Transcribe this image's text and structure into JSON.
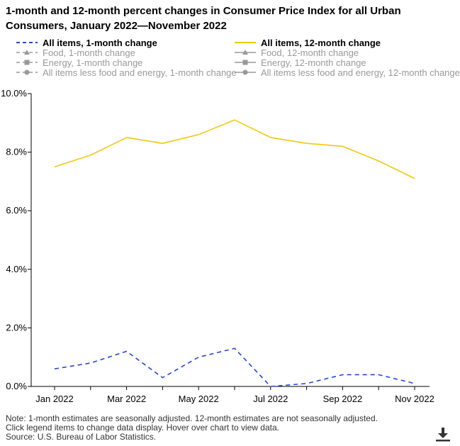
{
  "title": "1-month and 12-month percent changes in Consumer Price Index for all Urban Consumers, January 2022—November 2022",
  "legend": [
    {
      "label": "All items, 1-month change",
      "active": true,
      "color": "#2446d8",
      "dash": true,
      "marker": "none"
    },
    {
      "label": "All items, 12-month change",
      "active": true,
      "color": "#f2c80f",
      "dash": false,
      "marker": "none"
    },
    {
      "label": "Food, 1-month change",
      "active": false,
      "color": "#999999",
      "dash": true,
      "marker": "triangle"
    },
    {
      "label": "Food, 12-month change",
      "active": false,
      "color": "#999999",
      "dash": false,
      "marker": "triangle"
    },
    {
      "label": "Energy, 1-month change",
      "active": false,
      "color": "#999999",
      "dash": true,
      "marker": "square"
    },
    {
      "label": "Energy, 12-month change",
      "active": false,
      "color": "#999999",
      "dash": false,
      "marker": "square"
    },
    {
      "label": "All items less food and energy, 1-month change",
      "active": false,
      "color": "#999999",
      "dash": true,
      "marker": "circle"
    },
    {
      "label": "All items less food and energy, 12-month change",
      "active": false,
      "color": "#999999",
      "dash": false,
      "marker": "circle"
    }
  ],
  "chart_data": {
    "type": "line",
    "x": [
      "Jan 2022",
      "Feb 2022",
      "Mar 2022",
      "Apr 2022",
      "May 2022",
      "Jun 2022",
      "Jul 2022",
      "Aug 2022",
      "Sep 2022",
      "Oct 2022",
      "Nov 2022"
    ],
    "x_tick_labels": [
      "Jan 2022",
      "Mar 2022",
      "May 2022",
      "Jul 2022",
      "Sep 2022",
      "Nov 2022"
    ],
    "y_tick_labels": [
      "0.0%",
      "2.0%",
      "4.0%",
      "6.0%",
      "8.0%",
      "10.0%"
    ],
    "ylim": [
      0,
      10
    ],
    "grid": false,
    "legend_position": "top",
    "series": [
      {
        "name": "All items, 1-month change",
        "color": "#2446d8",
        "dash": true,
        "values": [
          0.6,
          0.8,
          1.2,
          0.3,
          1.0,
          1.3,
          0.0,
          0.1,
          0.4,
          0.4,
          0.1
        ]
      },
      {
        "name": "All items, 12-month change",
        "color": "#f2c80f",
        "dash": false,
        "values": [
          7.5,
          7.9,
          8.5,
          8.3,
          8.6,
          9.1,
          8.5,
          8.3,
          8.2,
          7.7,
          7.1
        ]
      }
    ]
  },
  "footnote": [
    "Note: 1-month estimates are seasonally adjusted. 12-month estimates are not seasonally adjusted.",
    "Click legend items to change data display. Hover over chart to view data.",
    "Source: U.S. Bureau of Labor Statistics."
  ]
}
